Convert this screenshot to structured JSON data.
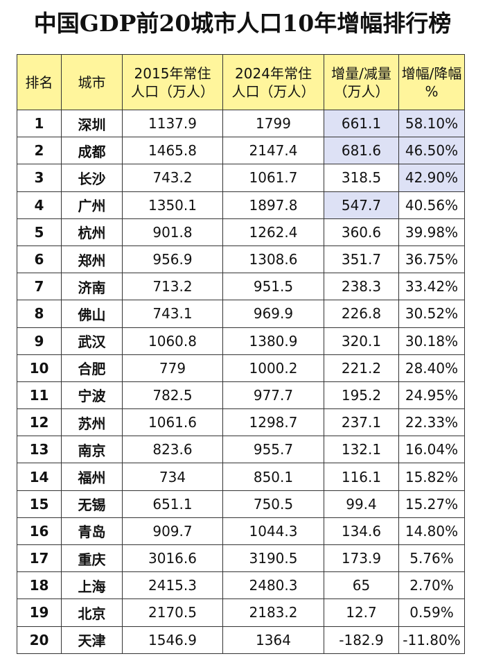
{
  "title": "中国GDP前20城市人口10年增幅排行榜",
  "headers": {
    "rank": "排名",
    "city": "城市",
    "pop2015": "2015年常住\n人口（万人）",
    "pop2024": "2024年常住\n人口（万人）",
    "change": "增量/减量\n（万人）",
    "pct": "增幅/降幅\n%"
  },
  "highlight_color": "#dde1f5",
  "header_color": "#fff59c",
  "rows": [
    {
      "rank": "1",
      "city": "深圳",
      "pop2015": "1137.9",
      "pop2024": "1799",
      "change": "661.1",
      "pct": "58.10%",
      "hl_change": true,
      "hl_pct": true
    },
    {
      "rank": "2",
      "city": "成都",
      "pop2015": "1465.8",
      "pop2024": "2147.4",
      "change": "681.6",
      "pct": "46.50%",
      "hl_change": true,
      "hl_pct": true
    },
    {
      "rank": "3",
      "city": "长沙",
      "pop2015": "743.2",
      "pop2024": "1061.7",
      "change": "318.5",
      "pct": "42.90%",
      "hl_change": false,
      "hl_pct": true
    },
    {
      "rank": "4",
      "city": "广州",
      "pop2015": "1350.1",
      "pop2024": "1897.8",
      "change": "547.7",
      "pct": "40.56%",
      "hl_change": true,
      "hl_pct": false
    },
    {
      "rank": "5",
      "city": "杭州",
      "pop2015": "901.8",
      "pop2024": "1262.4",
      "change": "360.6",
      "pct": "39.98%",
      "hl_change": false,
      "hl_pct": false
    },
    {
      "rank": "6",
      "city": "郑州",
      "pop2015": "956.9",
      "pop2024": "1308.6",
      "change": "351.7",
      "pct": "36.75%",
      "hl_change": false,
      "hl_pct": false
    },
    {
      "rank": "7",
      "city": "济南",
      "pop2015": "713.2",
      "pop2024": "951.5",
      "change": "238.3",
      "pct": "33.42%",
      "hl_change": false,
      "hl_pct": false
    },
    {
      "rank": "8",
      "city": "佛山",
      "pop2015": "743.1",
      "pop2024": "969.9",
      "change": "226.8",
      "pct": "30.52%",
      "hl_change": false,
      "hl_pct": false
    },
    {
      "rank": "9",
      "city": "武汉",
      "pop2015": "1060.8",
      "pop2024": "1380.9",
      "change": "320.1",
      "pct": "30.18%",
      "hl_change": false,
      "hl_pct": false
    },
    {
      "rank": "10",
      "city": "合肥",
      "pop2015": "779",
      "pop2024": "1000.2",
      "change": "221.2",
      "pct": "28.40%",
      "hl_change": false,
      "hl_pct": false
    },
    {
      "rank": "11",
      "city": "宁波",
      "pop2015": "782.5",
      "pop2024": "977.7",
      "change": "195.2",
      "pct": "24.95%",
      "hl_change": false,
      "hl_pct": false
    },
    {
      "rank": "12",
      "city": "苏州",
      "pop2015": "1061.6",
      "pop2024": "1298.7",
      "change": "237.1",
      "pct": "22.33%",
      "hl_change": false,
      "hl_pct": false
    },
    {
      "rank": "13",
      "city": "南京",
      "pop2015": "823.6",
      "pop2024": "955.7",
      "change": "132.1",
      "pct": "16.04%",
      "hl_change": false,
      "hl_pct": false
    },
    {
      "rank": "14",
      "city": "福州",
      "pop2015": "734",
      "pop2024": "850.1",
      "change": "116.1",
      "pct": "15.82%",
      "hl_change": false,
      "hl_pct": false
    },
    {
      "rank": "15",
      "city": "无锡",
      "pop2015": "651.1",
      "pop2024": "750.5",
      "change": "99.4",
      "pct": "15.27%",
      "hl_change": false,
      "hl_pct": false
    },
    {
      "rank": "16",
      "city": "青岛",
      "pop2015": "909.7",
      "pop2024": "1044.3",
      "change": "134.6",
      "pct": "14.80%",
      "hl_change": false,
      "hl_pct": false
    },
    {
      "rank": "17",
      "city": "重庆",
      "pop2015": "3016.6",
      "pop2024": "3190.5",
      "change": "173.9",
      "pct": "5.76%",
      "hl_change": false,
      "hl_pct": false
    },
    {
      "rank": "18",
      "city": "上海",
      "pop2015": "2415.3",
      "pop2024": "2480.3",
      "change": "65",
      "pct": "2.70%",
      "hl_change": false,
      "hl_pct": false
    },
    {
      "rank": "19",
      "city": "北京",
      "pop2015": "2170.5",
      "pop2024": "2183.2",
      "change": "12.7",
      "pct": "0.59%",
      "hl_change": false,
      "hl_pct": false
    },
    {
      "rank": "20",
      "city": "天津",
      "pop2015": "1546.9",
      "pop2024": "1364",
      "change": "-182.9",
      "pct": "-11.80%",
      "hl_change": false,
      "hl_pct": false
    }
  ]
}
